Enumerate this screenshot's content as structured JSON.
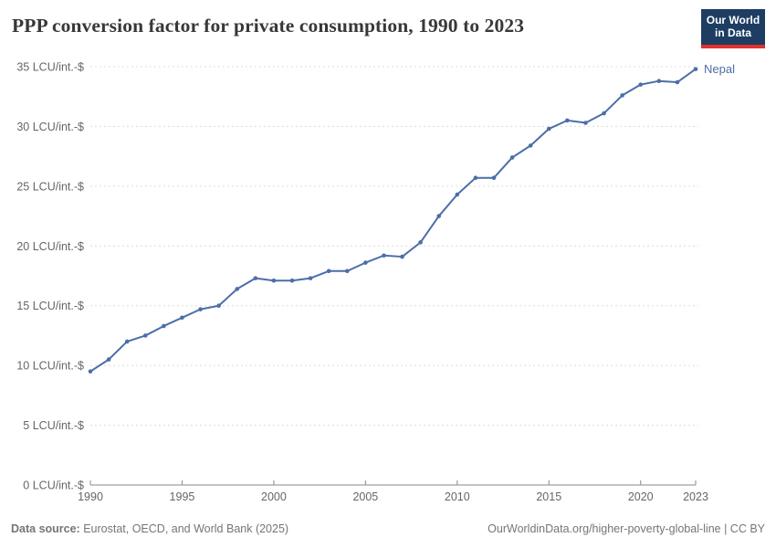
{
  "header": {
    "title": "PPP conversion factor for private consumption, 1990 to 2023",
    "logo_line1": "Our World",
    "logo_line2": "in Data",
    "logo_bg_color": "#1d3d63",
    "logo_accent_color": "#e0312e"
  },
  "footer": {
    "source_label": "Data source:",
    "source_text": " Eurostat, OECD, and World Bank (2025)",
    "right_text": "OurWorldinData.org/higher-poverty-global-line | CC BY"
  },
  "chart_data": {
    "type": "line",
    "title": "PPP conversion factor for private consumption, 1990 to 2023",
    "xlabel": "",
    "ylabel": "LCU/int.-$",
    "xlim": [
      1990,
      2023
    ],
    "ylim": [
      0,
      35
    ],
    "grid": "horizontal dashed",
    "legend_position": "end-of-line label",
    "x_ticks": [
      1990,
      1995,
      2000,
      2005,
      2010,
      2015,
      2020,
      2023
    ],
    "y_ticks": [
      0,
      5,
      10,
      15,
      20,
      25,
      30,
      35
    ],
    "y_tick_suffix": " LCU/int.-$",
    "series": [
      {
        "name": "Nepal",
        "color": "#4c6ea8",
        "x": [
          1990,
          1991,
          1992,
          1993,
          1994,
          1995,
          1996,
          1997,
          1998,
          1999,
          2000,
          2001,
          2002,
          2003,
          2004,
          2005,
          2006,
          2007,
          2008,
          2009,
          2010,
          2011,
          2012,
          2013,
          2014,
          2015,
          2016,
          2017,
          2018,
          2019,
          2020,
          2021,
          2022,
          2023
        ],
        "values": [
          9.5,
          10.5,
          12.0,
          12.5,
          13.3,
          14.0,
          14.7,
          15.0,
          16.4,
          17.3,
          17.1,
          17.1,
          17.3,
          17.9,
          17.9,
          18.6,
          19.2,
          19.1,
          20.3,
          22.5,
          24.3,
          25.7,
          25.7,
          27.4,
          28.4,
          29.8,
          30.5,
          30.3,
          31.1,
          32.6,
          33.5,
          33.8,
          33.7,
          34.8
        ]
      }
    ],
    "colors": {
      "gridline": "#dcdcdc",
      "axis": "#8a8a8a",
      "tick_text": "#666666"
    }
  }
}
